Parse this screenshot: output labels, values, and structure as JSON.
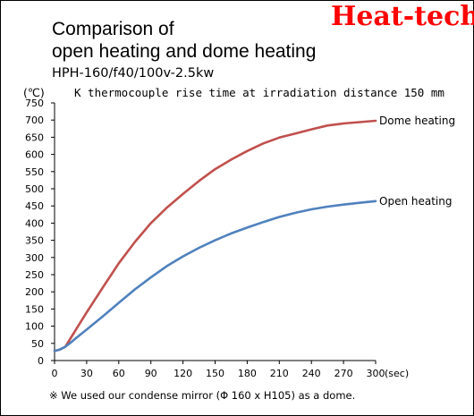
{
  "brand": "Heat-tech",
  "title_line1": "Comparison of",
  "title_line2": "open heating and dome heating",
  "model": "HPH-160/f40/100v-2.5kw",
  "unit_label": "(℃)",
  "subtitle": "K thermocouple rise time at irradiation distance 150 mm",
  "footnote": "※ We used our condense mirror (Φ 160 x H105) as a dome.",
  "colors": {
    "dome": "#c0504d",
    "open": "#4f81bd",
    "brand": "#ff0000"
  },
  "chart_data": {
    "type": "line",
    "xlabel": "(sec)",
    "ylabel": "(℃)",
    "xlim": [
      0,
      300
    ],
    "ylim": [
      0,
      750
    ],
    "x_ticks": [
      0,
      30,
      60,
      90,
      120,
      150,
      180,
      210,
      240,
      270,
      300
    ],
    "y_ticks": [
      0,
      50,
      100,
      150,
      200,
      250,
      300,
      350,
      400,
      450,
      500,
      550,
      600,
      650,
      700,
      750
    ],
    "grid": false,
    "legend": "labels at line ends (right)",
    "series": [
      {
        "name": "Dome heating",
        "color": "#c0504d",
        "x": [
          0,
          5,
          10,
          15,
          20,
          30,
          45,
          60,
          75,
          90,
          105,
          120,
          135,
          150,
          165,
          180,
          195,
          210,
          225,
          240,
          255,
          270,
          285,
          300
        ],
        "y": [
          28,
          32,
          40,
          65,
          90,
          140,
          212,
          283,
          345,
          400,
          445,
          485,
          523,
          557,
          585,
          610,
          632,
          649,
          661,
          673,
          684,
          690,
          694,
          698
        ]
      },
      {
        "name": "Open heating",
        "color": "#4f81bd",
        "x": [
          0,
          5,
          10,
          15,
          20,
          30,
          45,
          60,
          75,
          90,
          105,
          120,
          135,
          150,
          165,
          180,
          195,
          210,
          225,
          240,
          255,
          270,
          285,
          300
        ],
        "y": [
          28,
          32,
          40,
          52,
          65,
          90,
          128,
          168,
          207,
          242,
          275,
          303,
          328,
          350,
          370,
          387,
          403,
          418,
          430,
          440,
          448,
          454,
          459,
          464
        ]
      }
    ]
  }
}
